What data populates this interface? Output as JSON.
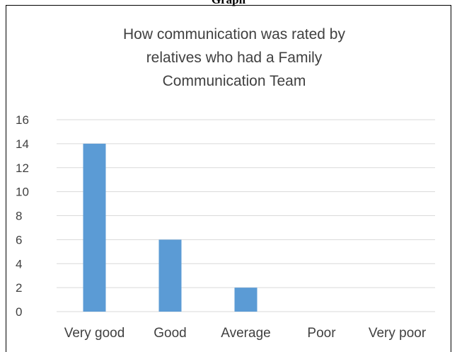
{
  "header": {
    "cut_text": "Graph"
  },
  "chart_data": {
    "type": "bar",
    "title_lines": [
      "How communication was rated by",
      "relatives who had a Family",
      "Communication Team"
    ],
    "categories": [
      "Very good",
      "Good",
      "Average",
      "Poor",
      "Very poor"
    ],
    "values": [
      14,
      6,
      2,
      0,
      0
    ],
    "yticks": [
      "0",
      "2",
      "4",
      "6",
      "8",
      "10",
      "12",
      "14",
      "16"
    ],
    "ylim": [
      0,
      16
    ],
    "grid": true,
    "bar_color": "#5b9bd5",
    "grid_color": "#d9d9d9",
    "text_color": "#404040"
  }
}
